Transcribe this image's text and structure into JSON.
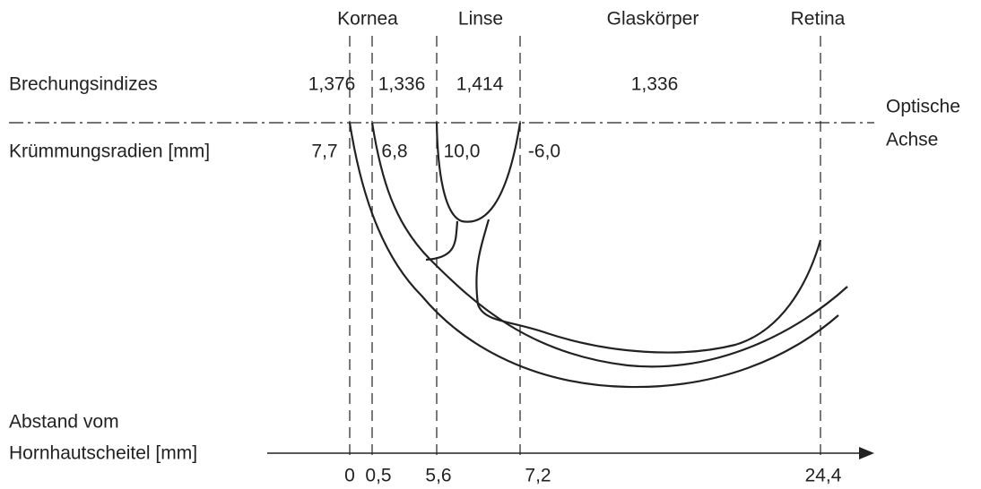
{
  "columns": [
    "Kornea",
    "Linse",
    "Glaskörper",
    "Retina"
  ],
  "rows": {
    "refraction": {
      "label": "Brechungsindizes",
      "values": [
        "1,376",
        "1,336",
        "1,414",
        "1,336"
      ]
    },
    "radii": {
      "label": "Krümmungsradien [mm]",
      "values": [
        "7,7",
        "6,8",
        "10,0",
        "-6,0"
      ]
    }
  },
  "optical_axis": {
    "lines": [
      "Optische",
      "Achse"
    ]
  },
  "distance_axis": {
    "lines": [
      "Abstand vom",
      "Hornhautscheitel [mm]"
    ],
    "ticks": [
      "0",
      "0,5",
      "5,6",
      "7,2",
      "24,4"
    ]
  }
}
